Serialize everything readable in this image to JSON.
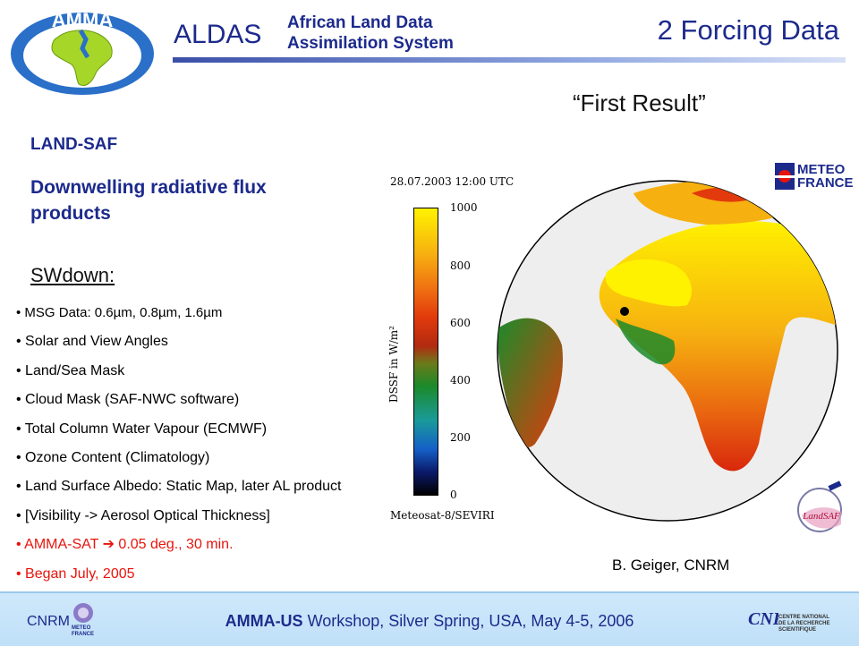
{
  "header": {
    "logo_text": "AMMA",
    "aldas": "ALDAS",
    "subtitle_line1": "African Land Data",
    "subtitle_line2": "Assimilation System",
    "slide_title": "2 Forcing Data"
  },
  "main": {
    "first_result": "“First Result”",
    "land_saf": "LAND-SAF",
    "flux_title": "Downwelling radiative flux products",
    "swdown": "SWdown:",
    "bullets": [
      "• MSG Data: 0.6µm, 0.8µm, 1.6µm",
      "• Solar and View Angles",
      "• Land/Sea Mask",
      "• Cloud Mask (SAF-NWC software)",
      "• Total Column Water Vapour (ECMWF)",
      "• Ozone Content (Climatology)",
      "• Land Surface Albedo: Static Map, later AL product",
      "• [Visibility -> Aerosol Optical Thickness]",
      "• AMMA-SAT ➔ 0.05 deg., 30 min.",
      "• Began July, 2005"
    ],
    "highlight_color": "#e8140c",
    "credit": "B. Geiger, CNRM"
  },
  "map": {
    "date_label": "28.07.2003 12:00 UTC",
    "satellite_label": "Meteosat-8/SEVIRI",
    "axis_label": "DSSF in W/m²",
    "ticks": [
      "1000",
      "800",
      "600",
      "400",
      "200",
      "0"
    ],
    "meteo_france_line1": "METEO",
    "meteo_france_line2": "FRANCE",
    "landsaf_logo": "LandSAF"
  },
  "footer": {
    "cnrm": "CNRM",
    "meteo_small": "METEO FRANCE",
    "workshop_bold": "AMMA-US",
    "workshop_rest": " Workshop, Silver Spring, USA, May 4-5, 2006",
    "cnrs": "CNRS",
    "cnrs_text1": "CENTRE NATIONAL",
    "cnrs_text2": "DE LA RECHERCHE",
    "cnrs_text3": "SCIENTIFIQUE"
  }
}
